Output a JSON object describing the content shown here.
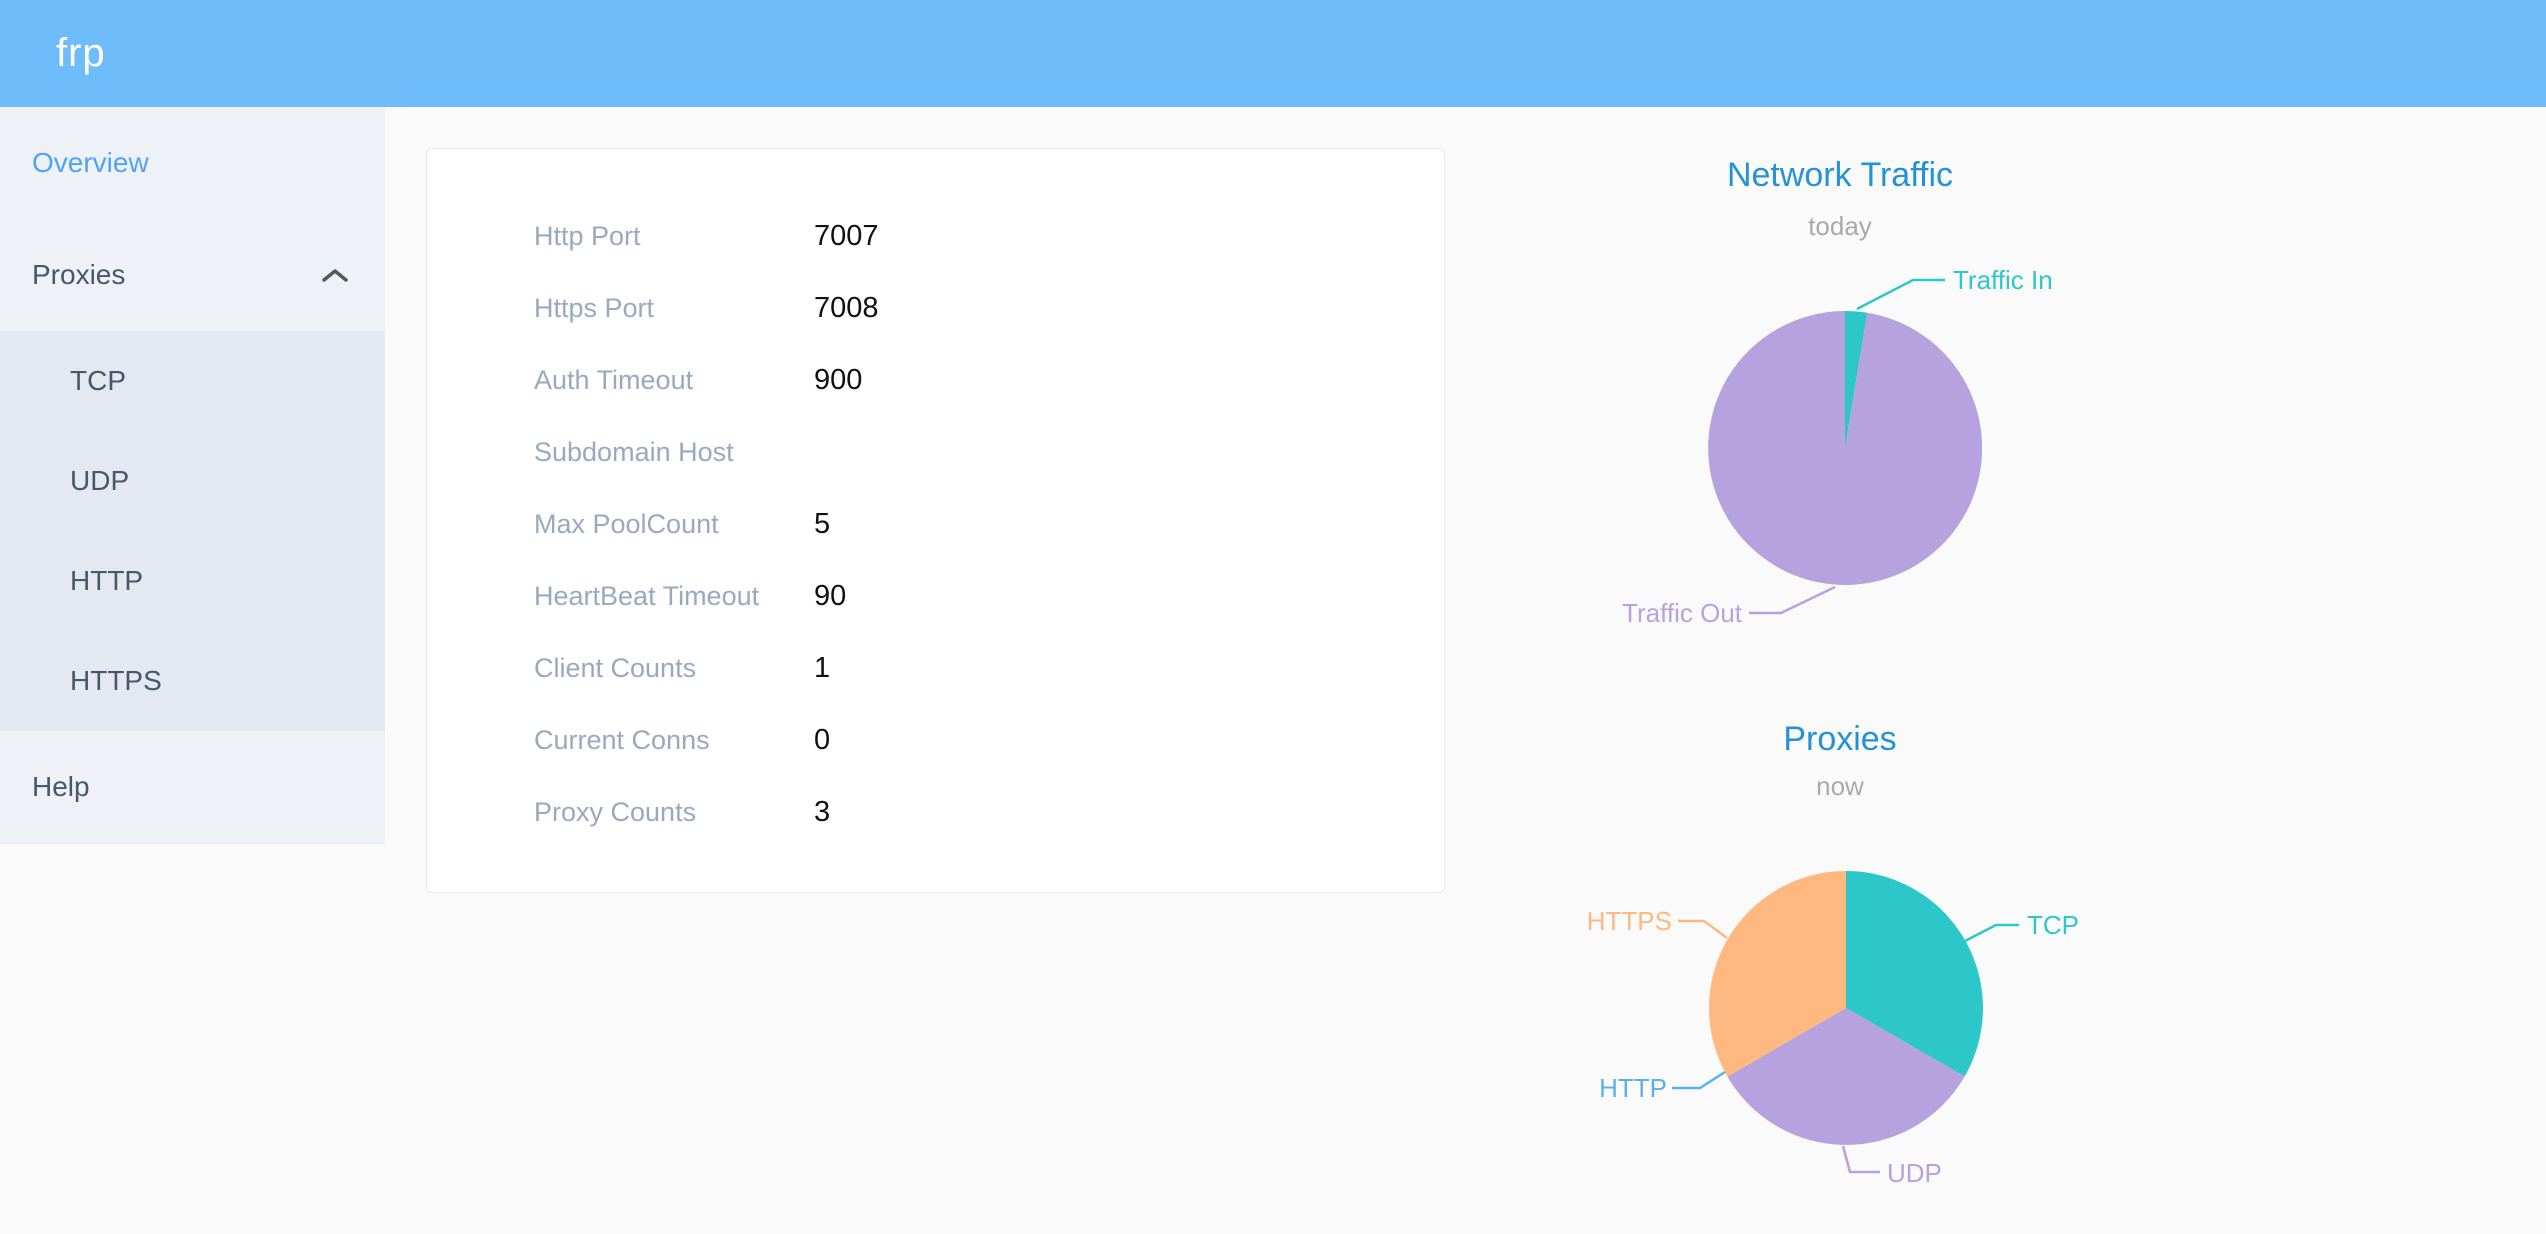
{
  "header": {
    "logo_text": "frp"
  },
  "sidebar": {
    "items": [
      {
        "label": "Overview",
        "active": true
      },
      {
        "label": "Proxies",
        "expanded": true
      },
      {
        "label": "Help",
        "active": false
      }
    ],
    "proxies_children": [
      {
        "label": "TCP"
      },
      {
        "label": "UDP"
      },
      {
        "label": "HTTP"
      },
      {
        "label": "HTTPS"
      }
    ]
  },
  "overview_card": {
    "rows": [
      {
        "label": "Http Port",
        "value": "7007"
      },
      {
        "label": "Https Port",
        "value": "7008"
      },
      {
        "label": "Auth Timeout",
        "value": "900"
      },
      {
        "label": "Subdomain Host",
        "value": ""
      },
      {
        "label": "Max PoolCount",
        "value": "5"
      },
      {
        "label": "HeartBeat Timeout",
        "value": "90"
      },
      {
        "label": "Client Counts",
        "value": "1"
      },
      {
        "label": "Current Conns",
        "value": "0"
      },
      {
        "label": "Proxy Counts",
        "value": "3"
      }
    ]
  },
  "chart_data": [
    {
      "type": "pie",
      "title": "Network Traffic",
      "subtitle": "today",
      "legend_position": "none",
      "slices": [
        {
          "label": "Traffic In",
          "value": 2.6,
          "unit": "percent-estimated-from-arc",
          "color": "#2ec7c9"
        },
        {
          "label": "Traffic Out",
          "value": 97.4,
          "unit": "percent-estimated-from-arc",
          "color": "#b6a2de"
        }
      ]
    },
    {
      "type": "pie",
      "title": "Proxies",
      "subtitle": "now",
      "legend_position": "none",
      "slices": [
        {
          "label": "TCP",
          "value": 1,
          "color": "#2ec7c9"
        },
        {
          "label": "UDP",
          "value": 1,
          "color": "#b6a2de"
        },
        {
          "label": "HTTP",
          "value": 0,
          "color": "#5ab1ef"
        },
        {
          "label": "HTTPS",
          "value": 1,
          "color": "#ffb980"
        }
      ]
    }
  ],
  "colors": {
    "header_bg": "#6ebdfa",
    "sidebar_bg": "#eef1f6",
    "submenu_bg": "#e4e8f1",
    "menu_text": "#48576a",
    "menu_active": "#4fa3f7",
    "card_label": "#99a9bf",
    "card_value": "#111111",
    "chart_title": "#2492d6",
    "chart_subtitle": "#aaaaaa",
    "pie_teal": "#2ec7c9",
    "pie_purple": "#b6a2de",
    "pie_blue": "#5ab1ef",
    "pie_orange": "#ffb980"
  }
}
